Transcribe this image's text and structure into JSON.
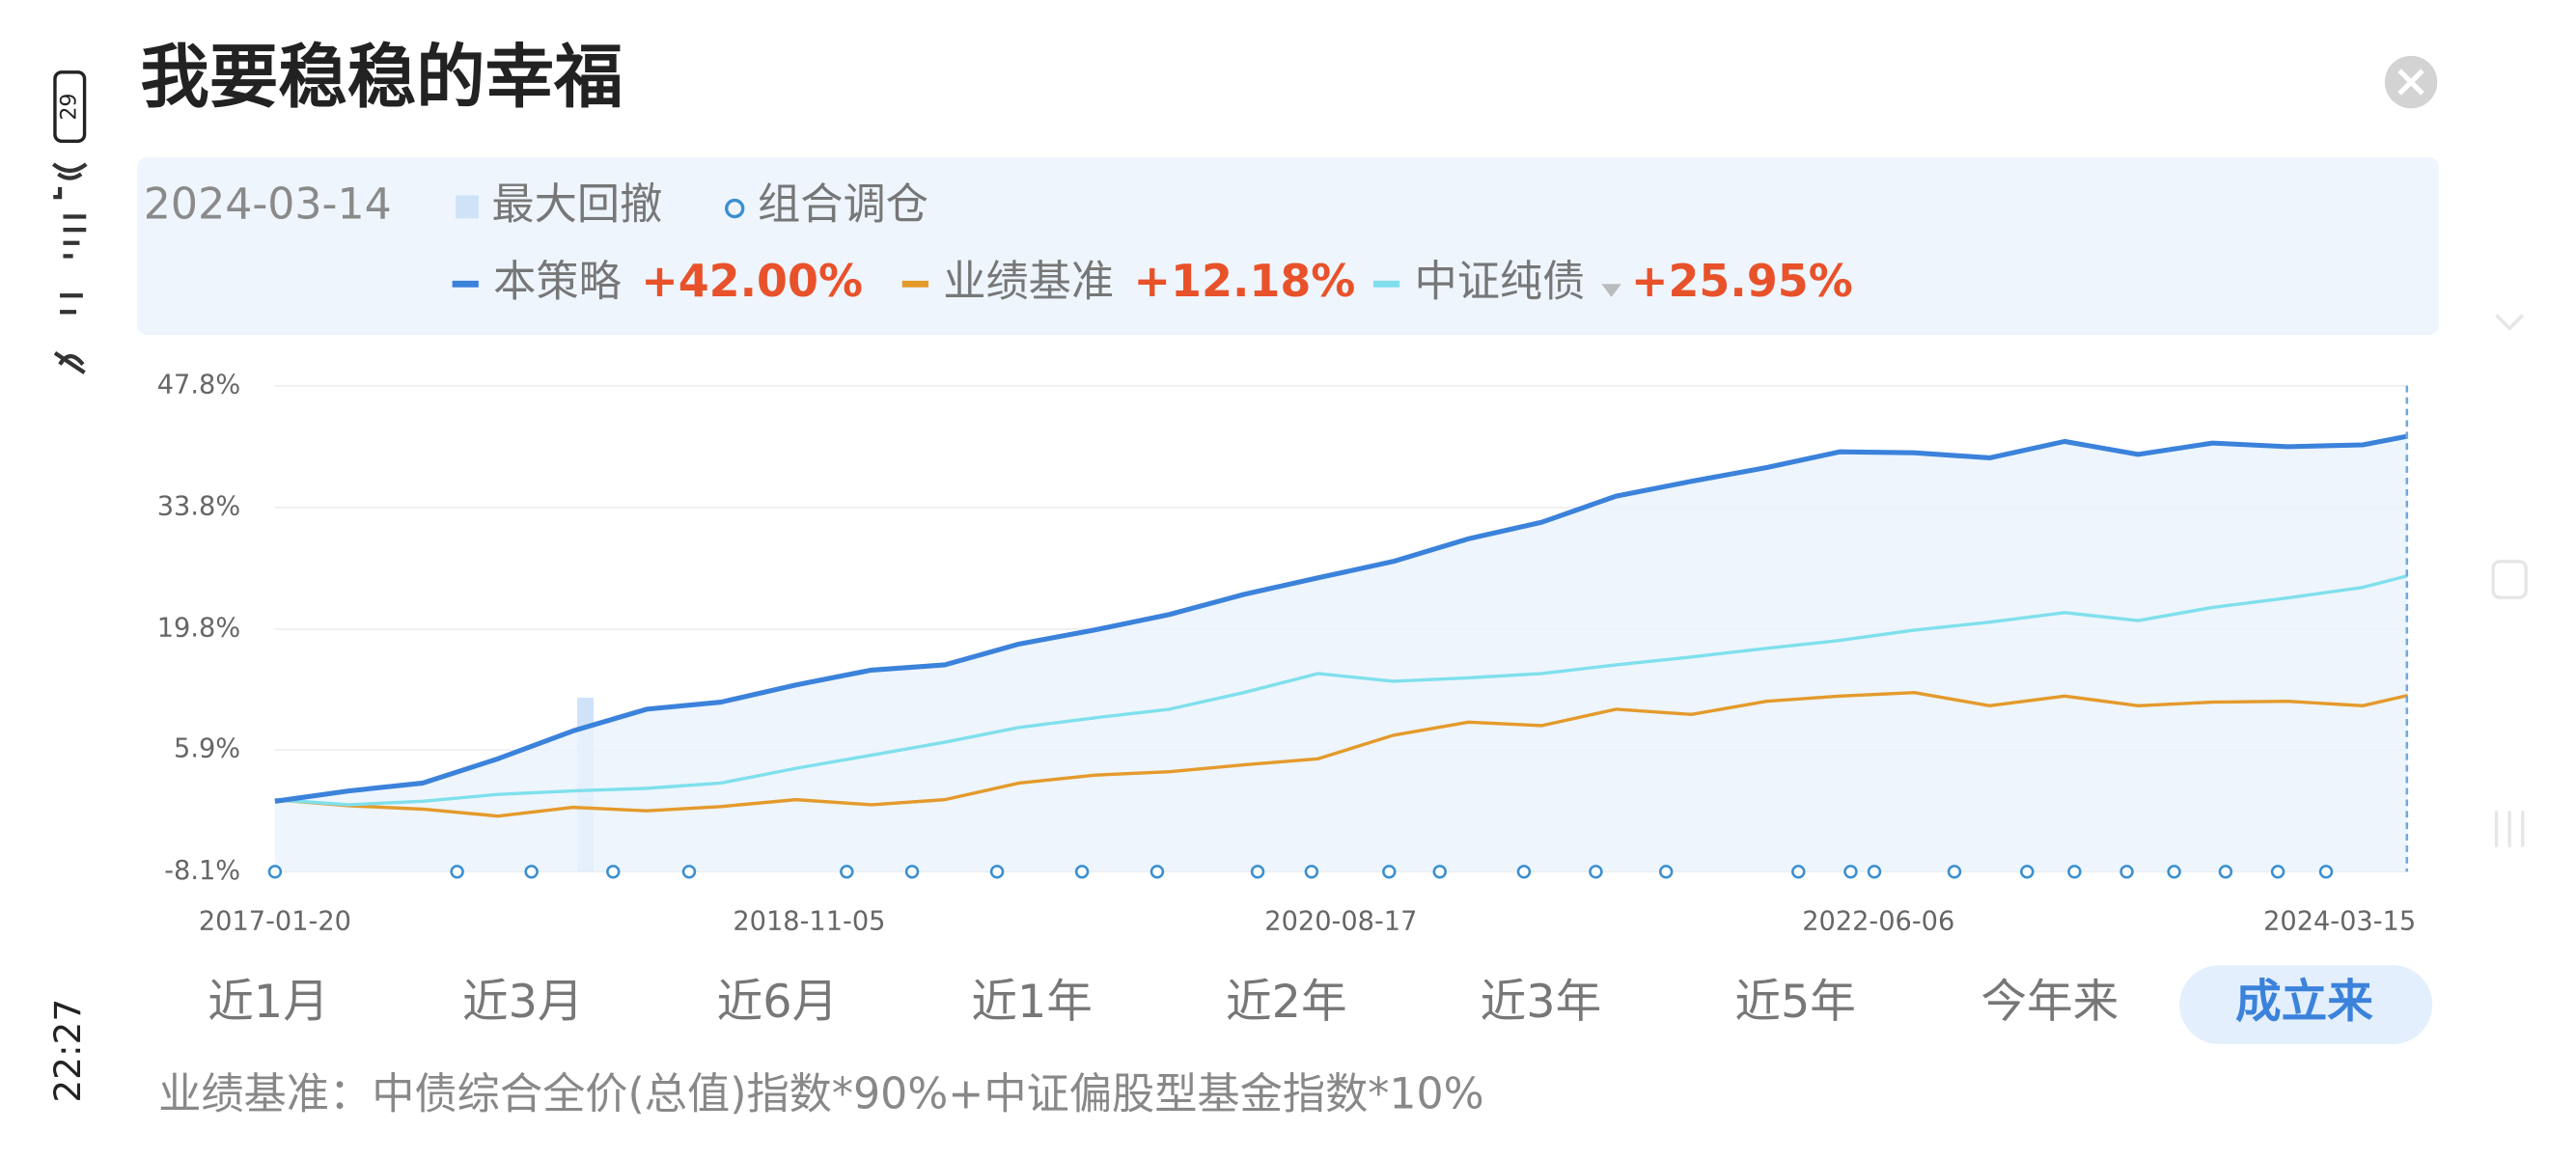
{
  "status": {
    "battery": "29",
    "time": "22:27"
  },
  "header": {
    "title": "我要稳稳的幸福"
  },
  "summary": {
    "date": "2024-03-14",
    "drawdown_legend": "最大回撤",
    "rebalance_legend": "组合调仓"
  },
  "chart_data": {
    "type": "line",
    "x": [
      "2017-01-20",
      "2017-04-20",
      "2017-07-20",
      "2017-10-20",
      "2018-01-20",
      "2018-04-20",
      "2018-07-20",
      "2018-10-20",
      "2019-01-20",
      "2019-04-20",
      "2019-07-20",
      "2019-10-20",
      "2020-01-20",
      "2020-04-20",
      "2020-07-20",
      "2020-10-20",
      "2021-01-20",
      "2021-04-20",
      "2021-07-20",
      "2021-10-20",
      "2022-01-20",
      "2022-04-20",
      "2022-07-20",
      "2022-10-20",
      "2023-01-20",
      "2023-04-20",
      "2023-07-20",
      "2023-10-20",
      "2024-01-20",
      "2024-03-15"
    ],
    "series": [
      {
        "name": "本策略",
        "color": "#3b82db",
        "change_label": "+42.00%",
        "values": [
          0,
          1.2,
          2.1,
          4.9,
          8.1,
          10.6,
          11.4,
          13.4,
          15.1,
          15.7,
          18.1,
          19.7,
          21.5,
          23.8,
          25.7,
          27.6,
          30.2,
          32.1,
          35.1,
          36.8,
          38.4,
          40.2,
          40.1,
          39.5,
          41.4,
          39.9,
          41.2,
          40.8,
          41.0,
          42.0
        ]
      },
      {
        "name": "业绩基准",
        "color": "#e49a2b",
        "change_label": "+12.18%",
        "values": [
          0.2,
          -0.5,
          -0.9,
          -1.7,
          -0.7,
          -1.1,
          -0.6,
          0.2,
          -0.4,
          0.2,
          2.1,
          3.0,
          3.4,
          4.2,
          4.9,
          7.6,
          9.1,
          8.7,
          10.6,
          10.0,
          11.5,
          12.1,
          12.5,
          11.0,
          12.1,
          11.0,
          11.4,
          11.5,
          11.0,
          12.18
        ]
      },
      {
        "name": "中证纯债",
        "color": "#7fe0ec",
        "change_label": "+25.95%",
        "values": [
          0.2,
          -0.4,
          0,
          0.8,
          1.2,
          1.5,
          2.1,
          3.8,
          5.3,
          6.8,
          8.5,
          9.6,
          10.6,
          12.5,
          14.7,
          13.8,
          14.2,
          14.7,
          15.7,
          16.6,
          17.6,
          18.5,
          19.7,
          20.6,
          21.7,
          20.8,
          22.3,
          23.4,
          24.6,
          25.95
        ]
      }
    ],
    "ylim": [
      -8.1,
      47.8
    ],
    "yticks": [
      {
        "value": -8.1,
        "label": "-8.1%"
      },
      {
        "value": 5.9,
        "label": "5.9%"
      },
      {
        "value": 19.8,
        "label": "19.8%"
      },
      {
        "value": 33.8,
        "label": "33.8%"
      },
      {
        "value": 47.8,
        "label": "47.8%"
      }
    ],
    "xlim": [
      "2017-01-20",
      "2024-03-15"
    ],
    "xticks": [
      "2017-01-20",
      "2018-11-05",
      "2020-08-17",
      "2022-06-06",
      "2024-03-15"
    ],
    "grid": true,
    "max_drawdown": {
      "start": "2018-01-25",
      "end": "2018-02-14"
    },
    "rebalance_dates": [
      "2017-01-20",
      "2017-08-31",
      "2017-11-30",
      "2018-03-10",
      "2018-06-11",
      "2018-12-21",
      "2019-03-11",
      "2019-06-23",
      "2019-10-05",
      "2020-01-05",
      "2020-05-07",
      "2020-07-12",
      "2020-10-15",
      "2020-12-16",
      "2021-03-29",
      "2021-06-25",
      "2021-09-19",
      "2022-02-28",
      "2022-05-03",
      "2022-06-01",
      "2022-09-07",
      "2022-12-05",
      "2023-02-01",
      "2023-04-06",
      "2023-06-03",
      "2023-08-05",
      "2023-10-08",
      "2023-12-06"
    ]
  },
  "periods": {
    "options": [
      "近1月",
      "近3月",
      "近6月",
      "近1年",
      "近2年",
      "近3年",
      "近5年",
      "今年来",
      "成立来"
    ],
    "selected": 8
  },
  "footnote": "业绩基准：中债综合全价(总值)指数*90%+中证偏股型基金指数*10%"
}
